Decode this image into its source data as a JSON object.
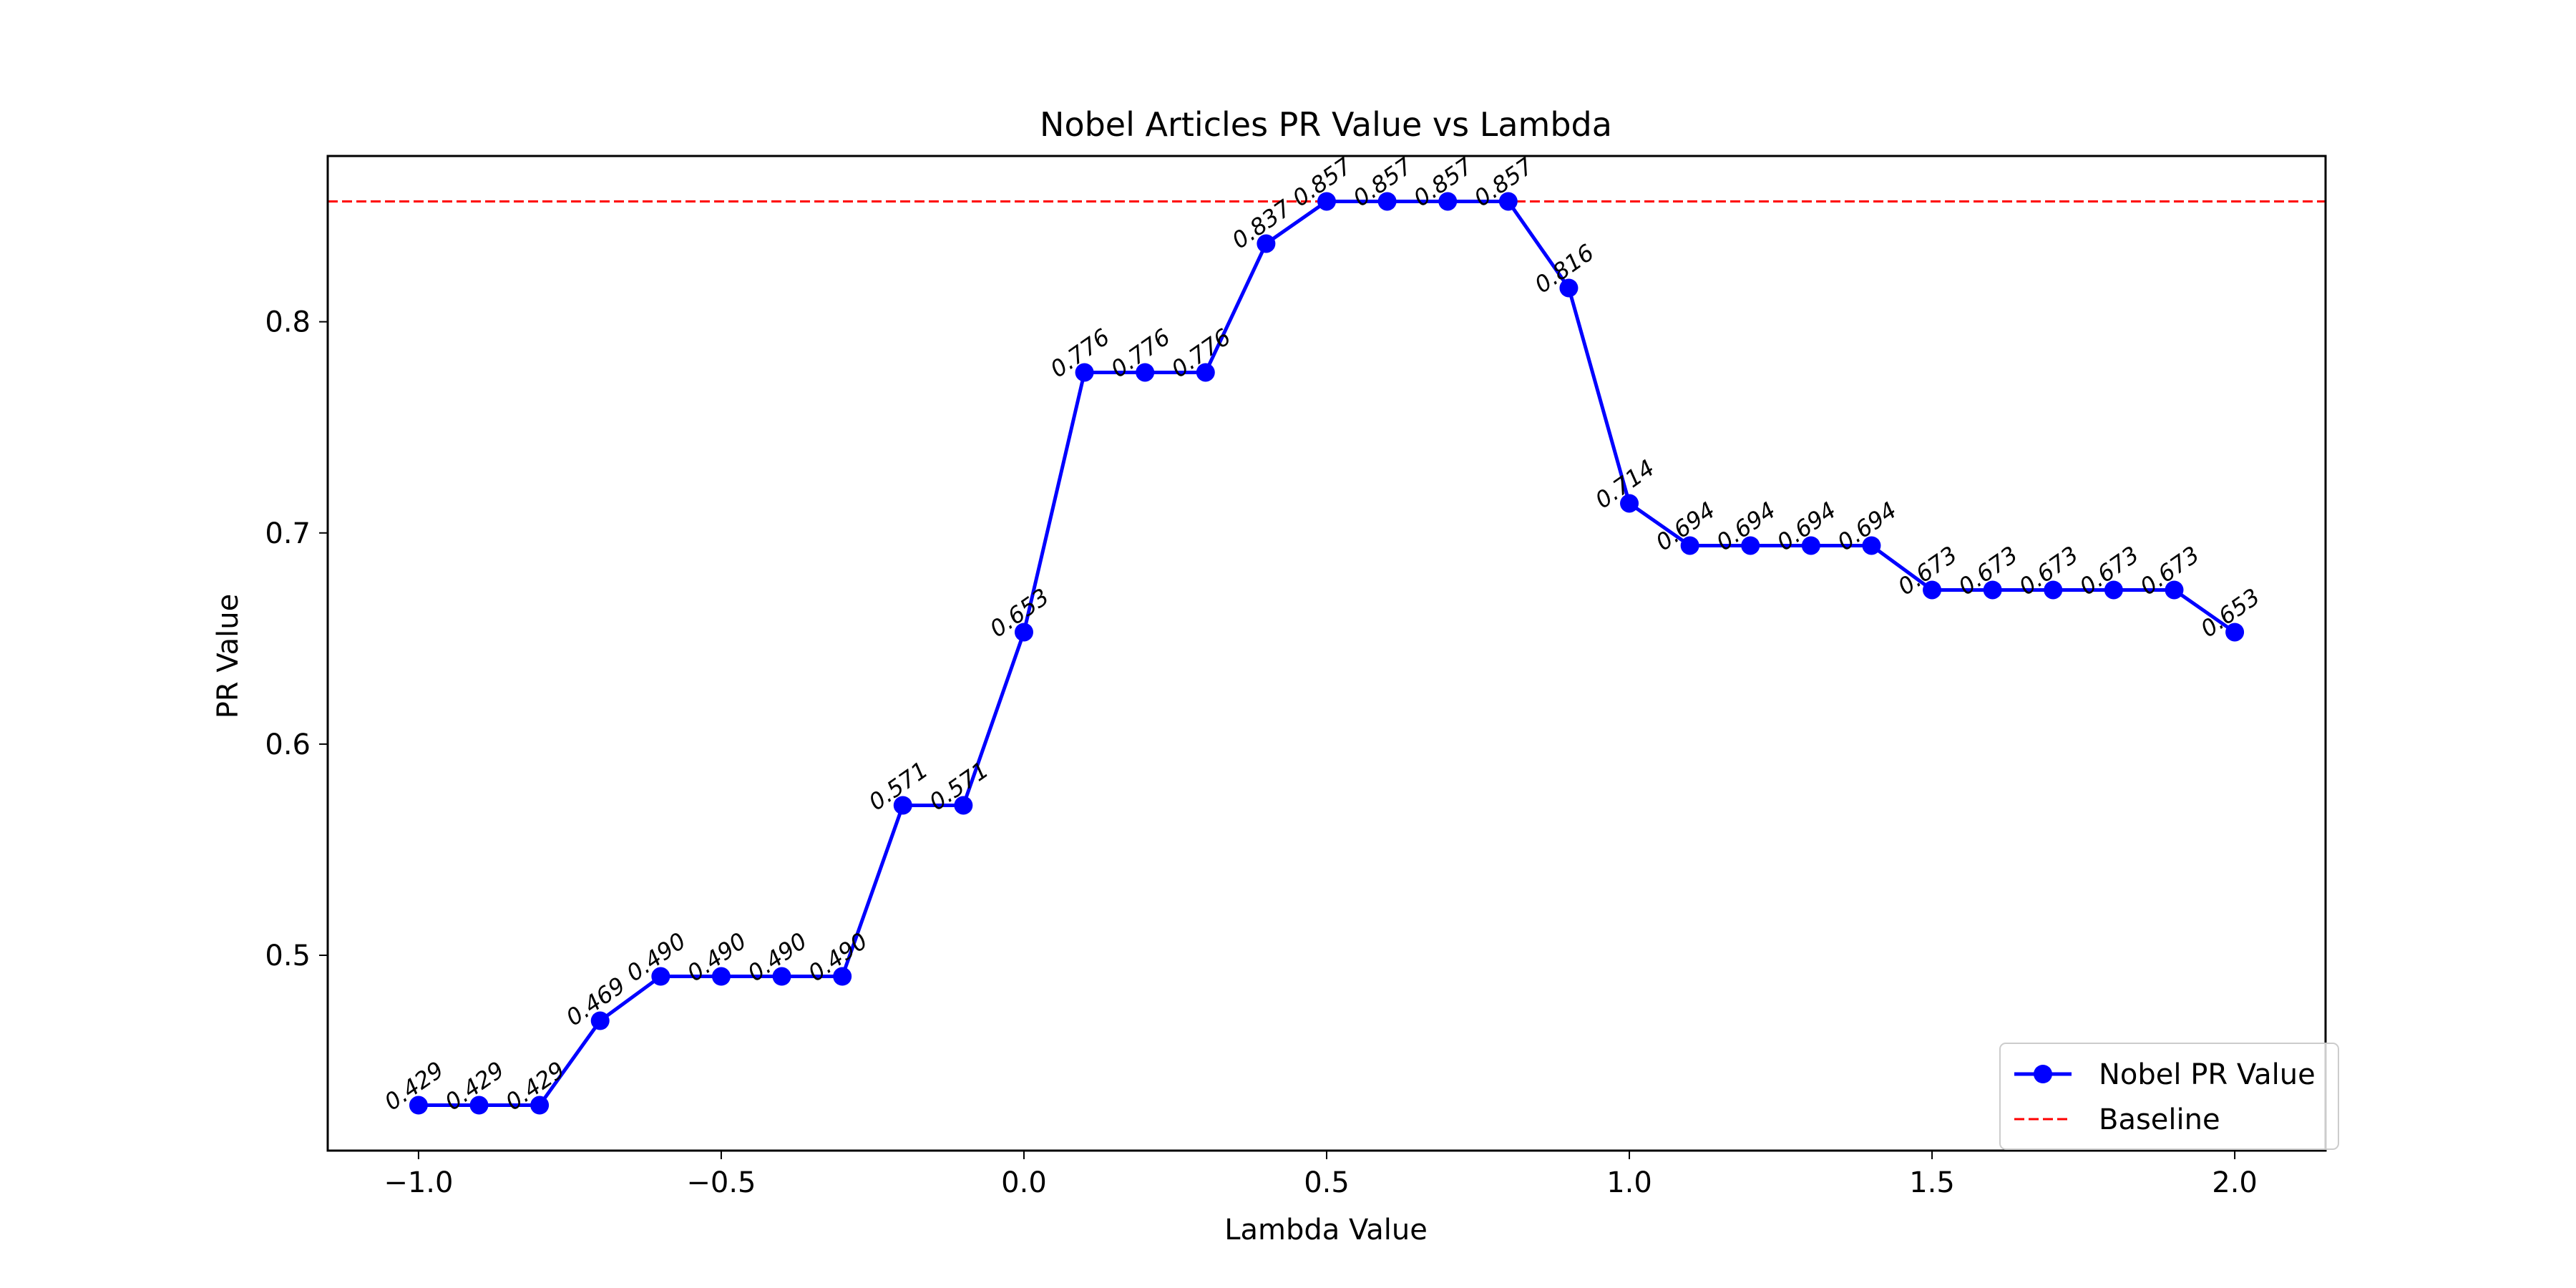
{
  "chart_data": {
    "type": "line",
    "title": "Nobel Articles PR Value vs Lambda",
    "xlabel": "Lambda Value",
    "ylabel": "PR Value",
    "xlim": [
      -1.15,
      2.15
    ],
    "ylim": [
      0.4075,
      0.8785
    ],
    "xticks": [
      -1.0,
      -0.5,
      0.0,
      0.5,
      1.0,
      1.5,
      2.0
    ],
    "xtick_labels": [
      "−1.0",
      "−0.5",
      "0.0",
      "0.5",
      "1.0",
      "1.5",
      "2.0"
    ],
    "yticks": [
      0.5,
      0.6,
      0.7,
      0.8
    ],
    "ytick_labels": [
      "0.5",
      "0.6",
      "0.7",
      "0.8"
    ],
    "grid": false,
    "legend_position": "lower-right",
    "series": [
      {
        "name": "Nobel PR Value",
        "color": "#0000ff",
        "marker": "circle",
        "x": [
          -1.0,
          -0.9,
          -0.8,
          -0.7,
          -0.6,
          -0.5,
          -0.4,
          -0.3,
          -0.2,
          -0.1,
          0.0,
          0.1,
          0.2,
          0.3,
          0.4,
          0.5,
          0.6,
          0.7,
          0.8,
          0.9,
          1.0,
          1.1,
          1.2,
          1.3,
          1.4,
          1.5,
          1.6,
          1.7,
          1.8,
          1.9,
          2.0
        ],
        "values": [
          0.429,
          0.429,
          0.429,
          0.469,
          0.49,
          0.49,
          0.49,
          0.49,
          0.571,
          0.571,
          0.653,
          0.776,
          0.776,
          0.776,
          0.837,
          0.857,
          0.857,
          0.857,
          0.857,
          0.816,
          0.714,
          0.694,
          0.694,
          0.694,
          0.694,
          0.673,
          0.673,
          0.673,
          0.673,
          0.673,
          0.653
        ],
        "labels": [
          "0.429",
          "0.429",
          "0.429",
          "0.469",
          "0.490",
          "0.490",
          "0.490",
          "0.490",
          "0.571",
          "0.571",
          "0.653",
          "0.776",
          "0.776",
          "0.776",
          "0.837",
          "0.857",
          "0.857",
          "0.857",
          "0.857",
          "0.816",
          "0.714",
          "0.694",
          "0.694",
          "0.694",
          "0.694",
          "0.673",
          "0.673",
          "0.673",
          "0.673",
          "0.673",
          "0.653"
        ]
      }
    ],
    "baseline": {
      "name": "Baseline",
      "value": 0.857,
      "color": "#ff0000",
      "style": "dashed"
    }
  }
}
